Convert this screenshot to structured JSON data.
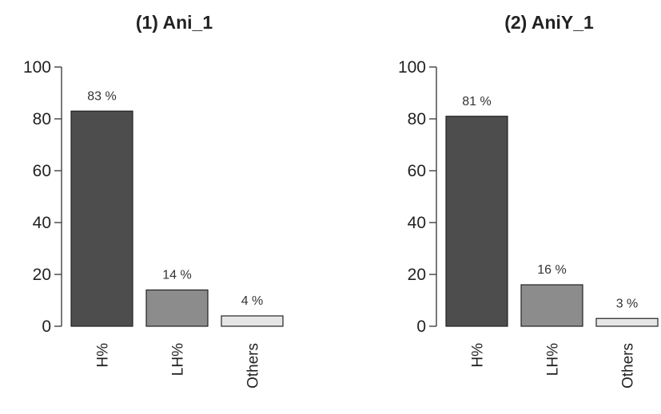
{
  "chart_data": [
    {
      "type": "bar",
      "title": "(1) Ani_1",
      "categories": [
        "H%",
        "LH%",
        "Others"
      ],
      "values": [
        83,
        14,
        4
      ],
      "data_labels": [
        "83 %",
        "14 %",
        "4 %"
      ],
      "bar_colors": [
        "#4d4d4d",
        "#8c8c8c",
        "#e6e6e6"
      ],
      "ylim": [
        0,
        100
      ],
      "yticks": [
        "0",
        "20",
        "40",
        "60",
        "80",
        "100"
      ],
      "grid": false,
      "legend": "none"
    },
    {
      "type": "bar",
      "title": "(2) AniY_1",
      "categories": [
        "H%",
        "LH%",
        "Others"
      ],
      "values": [
        81,
        16,
        3
      ],
      "data_labels": [
        "81 %",
        "16 %",
        "3 %"
      ],
      "bar_colors": [
        "#4d4d4d",
        "#8c8c8c",
        "#e6e6e6"
      ],
      "ylim": [
        0,
        100
      ],
      "yticks": [
        "0",
        "20",
        "40",
        "60",
        "80",
        "100"
      ],
      "grid": false,
      "legend": "none"
    }
  ]
}
